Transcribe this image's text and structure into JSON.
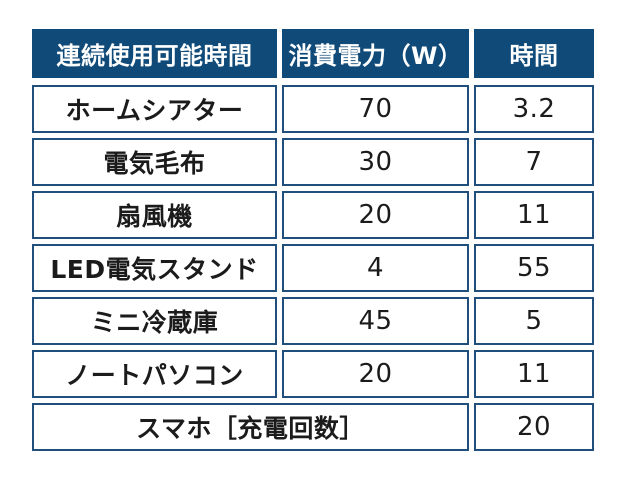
{
  "table": {
    "headers": {
      "name": "連続使用可能時間",
      "power": "消費電力（W）",
      "time": "時間"
    },
    "rows": [
      {
        "name": "ホームシアター",
        "power": "70",
        "time": "3.2"
      },
      {
        "name": "電気毛布",
        "power": "30",
        "time": "7"
      },
      {
        "name": "扇風機",
        "power": "20",
        "time": "11"
      },
      {
        "name": "LED電気スタンド",
        "power": "4",
        "time": "55"
      },
      {
        "name": "ミニ冷蔵庫",
        "power": "45",
        "time": "5"
      },
      {
        "name": "ノートパソコン",
        "power": "20",
        "time": "11"
      }
    ],
    "smartphone_row": {
      "name": "スマホ［充電回数］",
      "time": "20"
    }
  },
  "colors": {
    "header_bg": "#0f4a78",
    "border": "#1f4f7a",
    "header_text": "#ffffff",
    "cell_text": "#1b1b1b"
  }
}
